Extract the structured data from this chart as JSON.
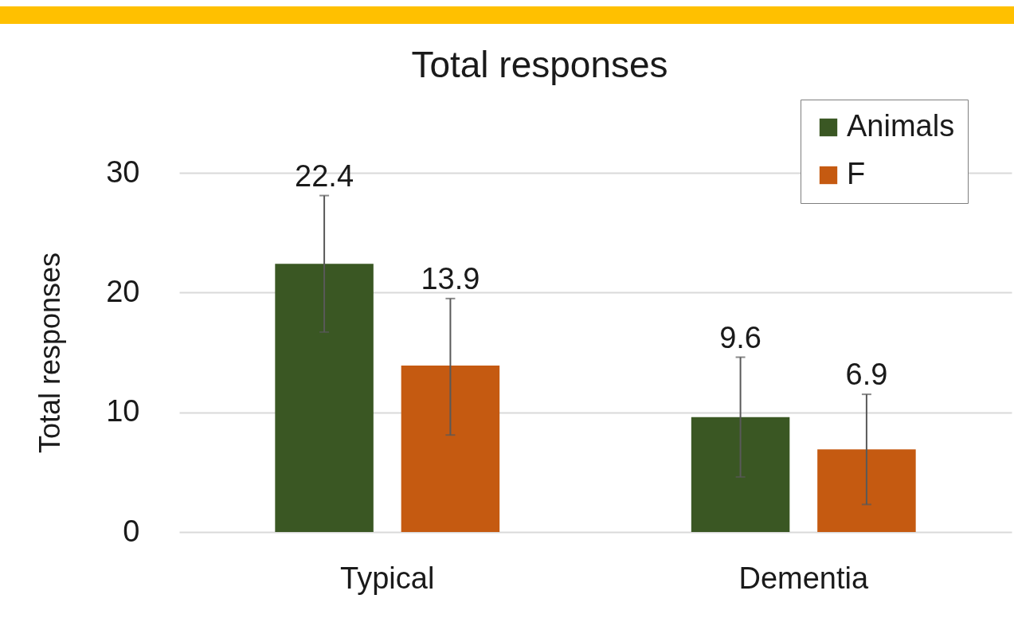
{
  "chart_data": {
    "type": "bar",
    "title": "Total responses",
    "ylabel": "Total responses",
    "categories": [
      "Typical",
      "Dementia"
    ],
    "series": [
      {
        "name": "Animals",
        "color": "#3a5723",
        "values": [
          22.4,
          9.6
        ],
        "errors": [
          [
            16.7,
            28.1
          ],
          [
            4.6,
            14.6
          ]
        ]
      },
      {
        "name": "F",
        "color": "#c55a11",
        "values": [
          13.9,
          6.9
        ],
        "errors": [
          [
            8.1,
            19.5
          ],
          [
            2.3,
            11.5
          ]
        ]
      }
    ],
    "ylim": [
      0,
      30
    ],
    "yticks": [
      0,
      10,
      20,
      30
    ],
    "grid": "y",
    "legend": "top right",
    "data_labels": true
  }
}
